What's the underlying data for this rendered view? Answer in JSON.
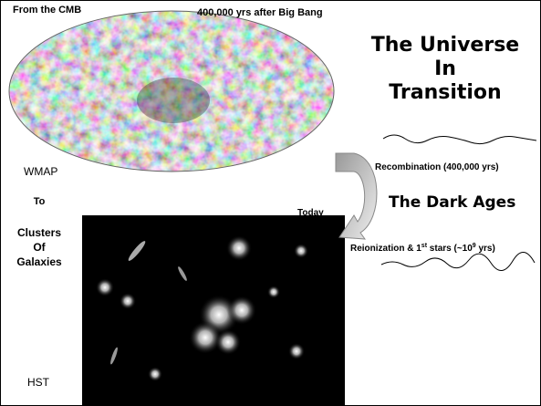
{
  "slide": {
    "cmb_caption": "From the CMB",
    "cmb_time": "400,000 yrs after Big Bang",
    "title_lines": [
      "The Universe",
      "In",
      "Transition"
    ],
    "wmap": "WMAP",
    "to": "To",
    "clusters_lines": [
      "Clusters",
      "Of",
      "Galaxies"
    ],
    "hst": "HST",
    "today": "Today",
    "recombination": "Recombination (400,000 yrs)",
    "dark_ages": "The Dark Ages",
    "reionization_parts": [
      "Reionization & 1",
      "st",
      " stars (~10",
      "9",
      " yrs)"
    ]
  }
}
